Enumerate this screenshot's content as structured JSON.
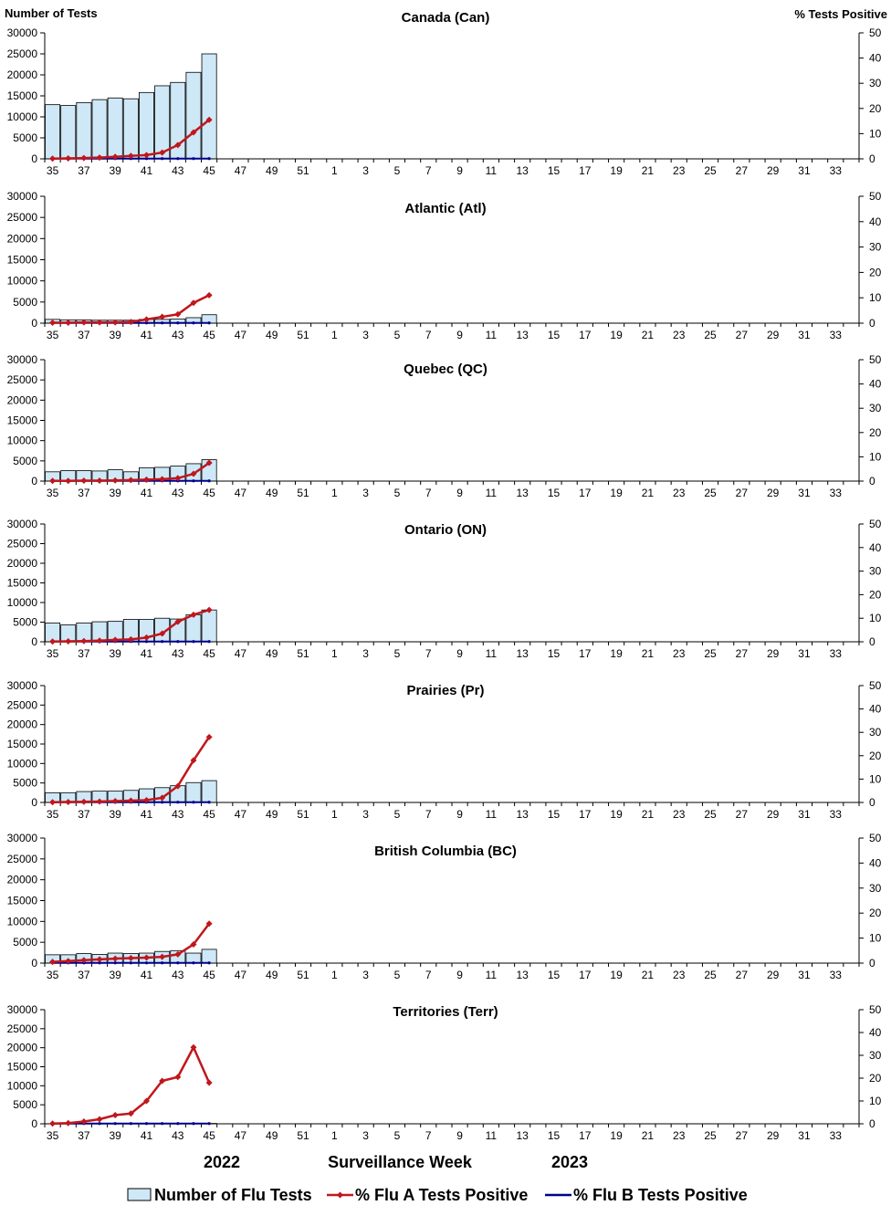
{
  "chart_data": {
    "type": "bar+line",
    "left_axis_title": "Number of Tests",
    "right_axis_title": "%  Tests Positive",
    "left_ylim": [
      0,
      30000
    ],
    "left_ticks": [
      0,
      5000,
      10000,
      15000,
      20000,
      25000,
      30000
    ],
    "right_ylim": [
      0,
      50
    ],
    "right_ticks": [
      0,
      10,
      20,
      30,
      40,
      50
    ],
    "weeks": [
      35,
      36,
      37,
      38,
      39,
      40,
      41,
      42,
      43,
      44,
      45,
      46,
      47,
      48,
      49,
      50,
      51,
      52,
      1,
      2,
      3,
      4,
      5,
      6,
      7,
      8,
      9,
      10,
      11,
      12,
      13,
      14,
      15,
      16,
      17,
      18,
      19,
      20,
      21,
      22,
      23,
      24,
      25,
      26,
      27,
      28,
      29,
      30,
      31,
      32,
      33,
      34
    ],
    "week_tick_labels": [
      "35",
      "37",
      "39",
      "41",
      "43",
      "45",
      "47",
      "49",
      "51",
      "1",
      "3",
      "5",
      "7",
      "9",
      "11",
      "13",
      "15",
      "17",
      "19",
      "21",
      "23",
      "25",
      "27",
      "29",
      "31",
      "33"
    ],
    "xlabel": "Surveillance Week",
    "season_labels": [
      "2022",
      "2023"
    ],
    "legend": [
      "Number of Flu Tests",
      "% Flu A Tests Positive",
      "% Flu B Tests Positive"
    ],
    "colors": {
      "bar_fill": "#cfe8f7",
      "bar_stroke": "#000000",
      "flu_a": "#c0171c",
      "flu_b": "#00008b"
    },
    "panels": [
      {
        "title": "Canada (Can)",
        "tests": [
          12900,
          12700,
          13400,
          14100,
          14500,
          14300,
          15800,
          17400,
          18200,
          20600,
          25000
        ],
        "flu_a": [
          0.1,
          0.2,
          0.3,
          0.5,
          0.8,
          1.2,
          1.5,
          2.5,
          5.5,
          10.5,
          15.5
        ],
        "flu_b": [
          0.1,
          0.1,
          0.1,
          0.1,
          0.1,
          0.1,
          0.1,
          0.1,
          0.1,
          0.1,
          0.1
        ]
      },
      {
        "title": "Atlantic (Atl)",
        "tests": [
          900,
          800,
          800,
          700,
          700,
          700,
          900,
          900,
          1000,
          1300,
          2000
        ],
        "flu_a": [
          0.2,
          0.2,
          0.3,
          0.3,
          0.3,
          0.5,
          1.5,
          2.5,
          3.5,
          8.0,
          11.0
        ],
        "flu_b": [
          0.1,
          0.1,
          0.1,
          0.1,
          0.1,
          0.1,
          0.1,
          0.1,
          0.1,
          0.1,
          0.1
        ]
      },
      {
        "title": "Quebec (QC)",
        "tests": [
          2300,
          2600,
          2600,
          2500,
          2800,
          2300,
          3300,
          3400,
          3700,
          4300,
          5300
        ],
        "flu_a": [
          0.1,
          0.1,
          0.2,
          0.2,
          0.3,
          0.4,
          0.6,
          0.8,
          1.2,
          3.0,
          7.5
        ],
        "flu_b": [
          0.1,
          0.1,
          0.1,
          0.1,
          0.1,
          0.1,
          0.1,
          0.1,
          0.1,
          0.1,
          0.1
        ]
      },
      {
        "title": "Ontario (ON)",
        "tests": [
          4800,
          4300,
          4800,
          5100,
          5200,
          5700,
          5700,
          6000,
          5800,
          6900,
          8100
        ],
        "flu_a": [
          0.1,
          0.2,
          0.3,
          0.5,
          0.8,
          1.0,
          1.8,
          3.5,
          8.5,
          11.5,
          13.5
        ],
        "flu_b": [
          0.1,
          0.1,
          0.1,
          0.1,
          0.1,
          0.1,
          0.1,
          0.1,
          0.1,
          0.1,
          0.1
        ]
      },
      {
        "title": "Prairies (Pr)",
        "tests": [
          2500,
          2500,
          2800,
          2900,
          2900,
          3100,
          3500,
          3800,
          4300,
          5100,
          5600
        ],
        "flu_a": [
          0.1,
          0.2,
          0.3,
          0.4,
          0.6,
          0.8,
          1.0,
          2.0,
          7.0,
          18.0,
          28.0
        ],
        "flu_b": [
          0.1,
          0.1,
          0.1,
          0.1,
          0.1,
          0.1,
          0.1,
          0.1,
          0.1,
          0.1,
          0.1
        ]
      },
      {
        "title": "British Columbia (BC)",
        "tests": [
          2000,
          2000,
          2300,
          2100,
          2400,
          2300,
          2400,
          2800,
          3000,
          2400,
          3300
        ],
        "flu_a": [
          0.5,
          0.8,
          1.2,
          1.5,
          1.8,
          2.0,
          2.2,
          2.5,
          3.5,
          7.5,
          15.8
        ],
        "flu_b": [
          0.1,
          0.1,
          0.1,
          0.1,
          0.1,
          0.1,
          0.1,
          0.1,
          0.1,
          0.1,
          0.1
        ]
      },
      {
        "title": "Territories (Terr)",
        "tests": [
          30,
          30,
          40,
          40,
          50,
          50,
          60,
          70,
          80,
          90,
          100
        ],
        "flu_a": [
          0.1,
          0.3,
          1.0,
          2.0,
          3.8,
          4.5,
          10.0,
          18.8,
          20.5,
          33.5,
          18.0
        ],
        "flu_b": [
          0.1,
          0.1,
          0.1,
          0.1,
          0.1,
          0.1,
          0.1,
          0.1,
          0.1,
          0.1,
          0.1
        ]
      }
    ]
  }
}
